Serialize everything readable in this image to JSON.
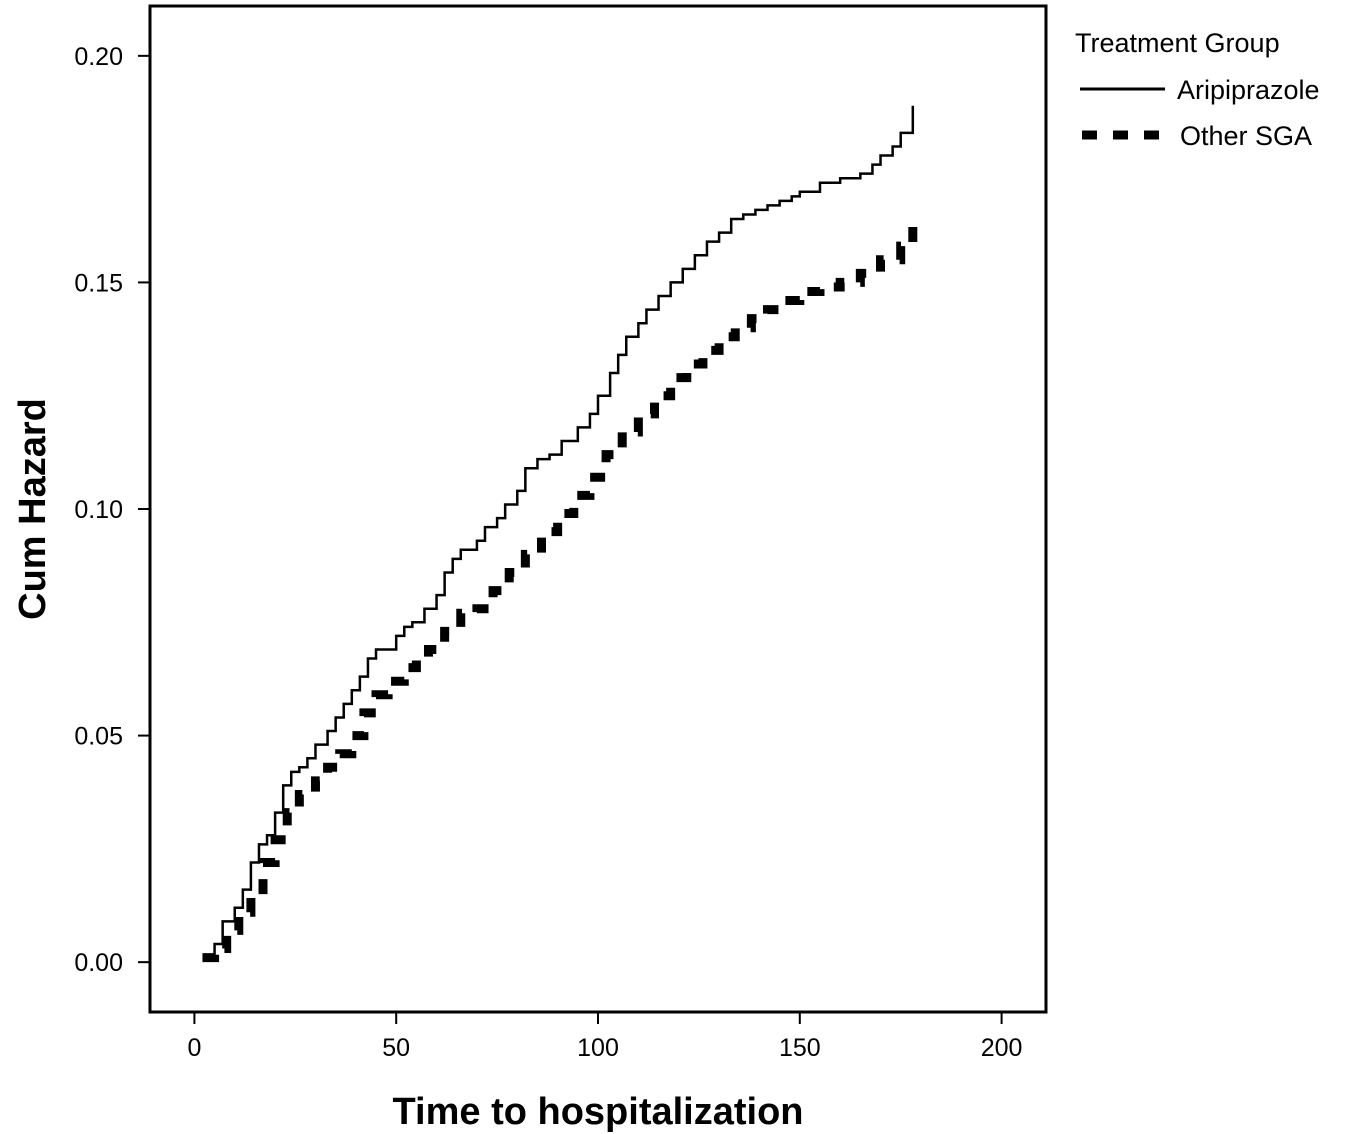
{
  "chart_data": {
    "type": "line",
    "step": true,
    "xlabel": "Time to hospitalization",
    "ylabel": "Cum Hazard",
    "xlim": [
      -11,
      211
    ],
    "ylim": [
      -0.011,
      0.211
    ],
    "x_ticks": [
      "0",
      "50",
      "100",
      "150",
      "200"
    ],
    "x_tick_values": [
      0,
      50,
      100,
      150,
      200
    ],
    "y_ticks": [
      "0.00",
      "0.05",
      "0.10",
      "0.15",
      "0.20"
    ],
    "y_tick_values": [
      0,
      0.05,
      0.1,
      0.15,
      0.2
    ],
    "grid": false,
    "legend": {
      "title": "Treatment Group",
      "position": "top-right-outside"
    },
    "series": [
      {
        "name": "Aripiprazole",
        "style": "solid",
        "color": "#000000",
        "x": [
          2,
          5,
          7,
          10,
          12,
          14,
          16,
          18,
          20,
          22,
          24,
          26,
          28,
          30,
          33,
          35,
          37,
          39,
          41,
          43,
          45,
          50,
          52,
          54,
          57,
          60,
          62,
          64,
          66,
          70,
          72,
          75,
          77,
          80,
          82,
          85,
          88,
          91,
          95,
          98,
          100,
          103,
          105,
          107,
          110,
          112,
          115,
          118,
          121,
          124,
          127,
          130,
          133,
          136,
          139,
          142,
          145,
          148,
          150,
          155,
          160,
          165,
          168,
          170,
          173,
          175,
          178
        ],
        "y": [
          0.001,
          0.004,
          0.009,
          0.012,
          0.016,
          0.022,
          0.026,
          0.028,
          0.033,
          0.039,
          0.042,
          0.043,
          0.045,
          0.048,
          0.051,
          0.054,
          0.057,
          0.06,
          0.063,
          0.067,
          0.069,
          0.072,
          0.074,
          0.075,
          0.078,
          0.081,
          0.086,
          0.089,
          0.091,
          0.093,
          0.096,
          0.098,
          0.101,
          0.104,
          0.109,
          0.111,
          0.112,
          0.115,
          0.118,
          0.121,
          0.125,
          0.13,
          0.134,
          0.138,
          0.141,
          0.144,
          0.147,
          0.15,
          0.153,
          0.156,
          0.159,
          0.161,
          0.164,
          0.165,
          0.166,
          0.167,
          0.168,
          0.169,
          0.17,
          0.172,
          0.173,
          0.174,
          0.176,
          0.178,
          0.18,
          0.183,
          0.189
        ]
      },
      {
        "name": "Other SGA",
        "style": "dashed",
        "color": "#000000",
        "x": [
          2,
          5,
          8,
          11,
          14,
          17,
          20,
          23,
          26,
          30,
          33,
          36,
          39,
          42,
          45,
          48,
          52,
          55,
          58,
          62,
          66,
          70,
          74,
          78,
          82,
          86,
          90,
          94,
          98,
          102,
          106,
          110,
          114,
          118,
          122,
          126,
          130,
          134,
          138,
          142,
          146,
          150,
          155,
          160,
          165,
          170,
          175,
          178
        ],
        "y": [
          0.001,
          0.003,
          0.007,
          0.011,
          0.016,
          0.022,
          0.027,
          0.033,
          0.037,
          0.04,
          0.043,
          0.046,
          0.05,
          0.055,
          0.059,
          0.062,
          0.065,
          0.067,
          0.069,
          0.073,
          0.077,
          0.078,
          0.082,
          0.086,
          0.09,
          0.095,
          0.099,
          0.103,
          0.107,
          0.112,
          0.117,
          0.121,
          0.125,
          0.129,
          0.132,
          0.135,
          0.138,
          0.14,
          0.142,
          0.144,
          0.146,
          0.148,
          0.149,
          0.15,
          0.152,
          0.155,
          0.158,
          0.163
        ]
      }
    ]
  }
}
